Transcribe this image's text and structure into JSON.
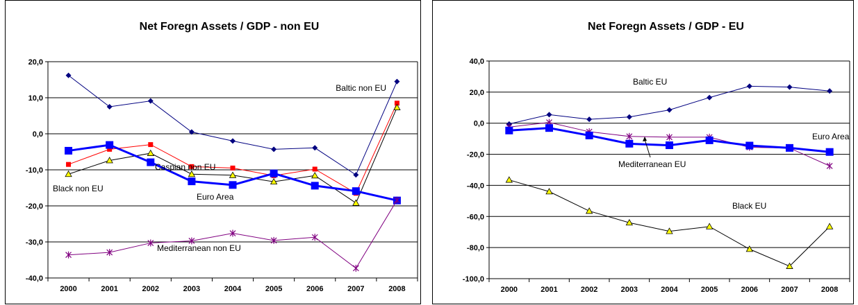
{
  "chart_data": [
    {
      "type": "line",
      "title": "Net Foregn Assets / GDP - non EU",
      "xlabel": "",
      "ylabel": "",
      "categories": [
        "2000",
        "2001",
        "2002",
        "2003",
        "2004",
        "2005",
        "2006",
        "2007",
        "2008"
      ],
      "ylim": [
        -40,
        20
      ],
      "yticks": [
        20,
        10,
        0,
        -10,
        -20,
        -30,
        -40
      ],
      "ytick_labels": [
        "20,0",
        "10,0",
        "0,0",
        "-10,0",
        "-20,0",
        "-30,0",
        "-40,0"
      ],
      "grid": true,
      "series": [
        {
          "name": "Baltic non EU",
          "color": "#000080",
          "marker": "diamond",
          "width": 1,
          "values": [
            16.2,
            7.5,
            9.1,
            0.5,
            -2.0,
            -4.3,
            -3.9,
            -11.4,
            14.5
          ]
        },
        {
          "name": "Caspian non EU",
          "color": "#ff0000",
          "marker": "square",
          "width": 1,
          "values": [
            -8.5,
            -4.3,
            -3.0,
            -9.1,
            -9.5,
            -11.6,
            -9.8,
            -16.5,
            8.5
          ]
        },
        {
          "name": "Black non EU",
          "color": "#000000",
          "marker": "triangle",
          "width": 1,
          "values": [
            -11.2,
            -7.4,
            -5.4,
            -11.2,
            -11.5,
            -13.3,
            -11.6,
            -19.2,
            7.3
          ]
        },
        {
          "name": "Euro Area",
          "color": "#0000ff",
          "marker": "bigsquare",
          "width": 3,
          "values": [
            -4.7,
            -3.1,
            -7.9,
            -13.2,
            -14.2,
            -11.0,
            -14.4,
            -15.9,
            -18.5
          ]
        },
        {
          "name": "Mediterranean non EU",
          "color": "#800080",
          "marker": "star",
          "width": 1,
          "values": [
            -33.6,
            -32.9,
            -30.3,
            -29.7,
            -27.6,
            -29.6,
            -28.7,
            -37.3,
            -18.4
          ]
        }
      ]
    },
    {
      "type": "line",
      "title": "Net Foregn Assets / GDP - EU",
      "xlabel": "",
      "ylabel": "",
      "categories": [
        "2000",
        "2001",
        "2002",
        "2003",
        "2004",
        "2005",
        "2006",
        "2007",
        "2008"
      ],
      "ylim": [
        -100,
        40
      ],
      "yticks": [
        40,
        20,
        0,
        -20,
        -40,
        -60,
        -80,
        -100
      ],
      "ytick_labels": [
        "40,0",
        "20,0",
        "0,0",
        "-20,0",
        "-40,0",
        "-60,0",
        "-80,0",
        "-100,0"
      ],
      "grid": true,
      "series": [
        {
          "name": "Baltic EU",
          "color": "#000080",
          "marker": "diamond",
          "width": 1,
          "values": [
            -0.5,
            5.5,
            2.5,
            4.0,
            8.5,
            16.5,
            23.8,
            23.2,
            20.7
          ]
        },
        {
          "name": "Mediterranean EU",
          "color": "#800080",
          "marker": "star",
          "width": 1,
          "values": [
            -2.5,
            0.5,
            -5.5,
            -8.5,
            -9.0,
            -9.0,
            -15.5,
            -16.0,
            -27.5
          ]
        },
        {
          "name": "Euro Area",
          "color": "#0000ff",
          "marker": "bigsquare",
          "width": 3,
          "values": [
            -4.7,
            -3.1,
            -7.9,
            -13.2,
            -14.2,
            -11.0,
            -14.4,
            -15.9,
            -18.5
          ]
        },
        {
          "name": "Black EU",
          "color": "#000000",
          "marker": "triangle",
          "width": 1,
          "values": [
            -36.5,
            -44.0,
            -56.5,
            -64.0,
            -69.5,
            -66.5,
            -81.0,
            -92.0,
            -66.5
          ]
        }
      ]
    }
  ],
  "annotations": [
    [
      {
        "text": "Baltic non EU",
        "series": 0
      },
      {
        "text": "Caspian non EU",
        "series": 1
      },
      {
        "text": "Black non EU",
        "series": 2
      },
      {
        "text": "Euro Area",
        "series": 3
      },
      {
        "text": "Mediterranean non EU",
        "series": 4
      }
    ],
    [
      {
        "text": "Baltic EU",
        "series": 0
      },
      {
        "text": "Mediterranean EU",
        "series": 1
      },
      {
        "text": "Euro Area",
        "series": 2
      },
      {
        "text": "Black EU",
        "series": 3
      }
    ]
  ],
  "marker_fill_triangle": "#ffff00"
}
